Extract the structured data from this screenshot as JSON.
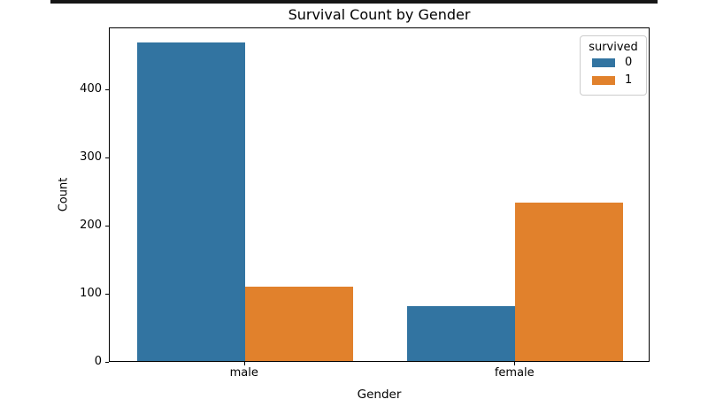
{
  "chart_data": {
    "type": "bar",
    "title": "Survival Count by Gender",
    "xlabel": "Gender",
    "ylabel": "Count",
    "categories": [
      "male",
      "female"
    ],
    "series": [
      {
        "name": "0",
        "color": "#3274a1",
        "values": [
          468,
          81
        ]
      },
      {
        "name": "1",
        "color": "#e1812c",
        "values": [
          109,
          233
        ]
      }
    ],
    "yticks": [
      0,
      100,
      200,
      300,
      400
    ],
    "ylim": [
      0,
      491.4
    ],
    "grid": false,
    "legend_position": "upper right"
  },
  "legend": {
    "title": "survived",
    "entries": [
      {
        "label": "0",
        "color": "#3274a1"
      },
      {
        "label": "1",
        "color": "#e1812c"
      }
    ]
  }
}
